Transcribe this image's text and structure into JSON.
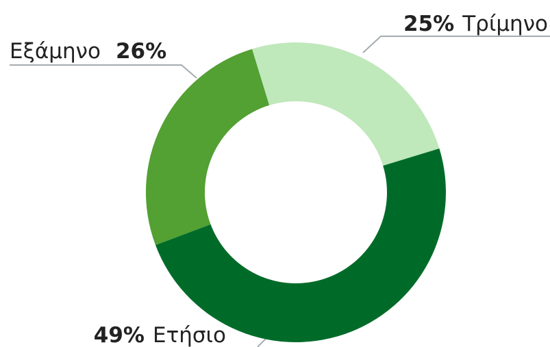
{
  "chart_data": {
    "type": "donut",
    "categories": [
      "Τρίμηνο",
      "Ετήσιο",
      "Εξάμηνο"
    ],
    "values": [
      25,
      49,
      26
    ],
    "value_labels": [
      "25%",
      "49%",
      "26%"
    ],
    "colors": [
      "#bfe8bb",
      "#006b29",
      "#53a033"
    ]
  }
}
